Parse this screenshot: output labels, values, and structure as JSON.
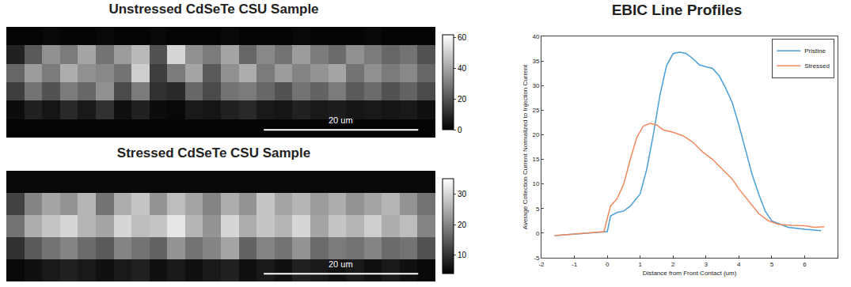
{
  "chart_data": [
    {
      "type": "heatmap",
      "title": "Unstressed CdSeTe CSU Sample",
      "tick_labels": false,
      "cells": [
        [
          1,
          1,
          2,
          1,
          1,
          2,
          1,
          1,
          2,
          1,
          1,
          1,
          2,
          1,
          1,
          1,
          2,
          1,
          1,
          1,
          2,
          1,
          1,
          1
        ],
        [
          8,
          22,
          35,
          30,
          40,
          28,
          38,
          45,
          20,
          52,
          35,
          30,
          40,
          25,
          33,
          28,
          38,
          30,
          26,
          35,
          30,
          25,
          28,
          20
        ],
        [
          25,
          38,
          30,
          42,
          35,
          33,
          28,
          50,
          15,
          30,
          40,
          22,
          35,
          42,
          30,
          38,
          32,
          36,
          40,
          28,
          35,
          30,
          33,
          25
        ],
        [
          15,
          28,
          20,
          30,
          25,
          35,
          18,
          30,
          12,
          10,
          25,
          18,
          28,
          30,
          25,
          20,
          28,
          24,
          30,
          22,
          26,
          20,
          24,
          18
        ],
        [
          3,
          8,
          5,
          10,
          6,
          12,
          4,
          8,
          3,
          2,
          6,
          5,
          8,
          10,
          6,
          5,
          8,
          6,
          7,
          5,
          6,
          5,
          6,
          4
        ],
        [
          1,
          1,
          1,
          1,
          1,
          1,
          1,
          1,
          1,
          1,
          1,
          1,
          1,
          1,
          1,
          1,
          1,
          1,
          1,
          1,
          1,
          1,
          1,
          1
        ]
      ],
      "colorbar_range": [
        0,
        62
      ],
      "colorbar_ticks": [
        0,
        20,
        40,
        60
      ],
      "annotations": [
        {
          "text": "20 um"
        }
      ]
    },
    {
      "type": "heatmap",
      "title": "Stressed CdSeTe CSU Sample",
      "tick_labels": false,
      "cells": [
        [
          5,
          5,
          5,
          5,
          5,
          5,
          5,
          5,
          5,
          5,
          5,
          5,
          5,
          5,
          5,
          5,
          5,
          5,
          5,
          5,
          5,
          5,
          5,
          5
        ],
        [
          12,
          20,
          24,
          22,
          26,
          18,
          25,
          28,
          22,
          27,
          24,
          20,
          25,
          22,
          28,
          24,
          26,
          23,
          25,
          22,
          24,
          26,
          22,
          18
        ],
        [
          18,
          25,
          28,
          30,
          26,
          24,
          30,
          27,
          28,
          32,
          26,
          22,
          30,
          25,
          28,
          26,
          30,
          24,
          28,
          26,
          29,
          25,
          27,
          20
        ],
        [
          10,
          15,
          18,
          20,
          17,
          15,
          20,
          18,
          16,
          22,
          18,
          20,
          24,
          16,
          20,
          18,
          22,
          17,
          19,
          18,
          20,
          17,
          18,
          14
        ],
        [
          5,
          6,
          7,
          8,
          7,
          6,
          7,
          8,
          6,
          7,
          6,
          7,
          8,
          6,
          7,
          6,
          8,
          7,
          6,
          7,
          6,
          7,
          6,
          5
        ]
      ],
      "colorbar_range": [
        4,
        35
      ],
      "colorbar_ticks": [
        10,
        20,
        30
      ],
      "annotations": [
        {
          "text": "20 um"
        }
      ]
    },
    {
      "type": "line",
      "title": "EBIC Line Profiles",
      "x_label": "Distance from Front Contact (um)",
      "y_label": "Average Collection Current Normalized to Injection Current",
      "xlim": [
        -2,
        7
      ],
      "xticks": [
        -2,
        -1,
        0,
        1,
        2,
        3,
        4,
        5,
        6
      ],
      "ylim": [
        -5,
        40
      ],
      "yticks": [
        -5,
        0,
        5,
        10,
        15,
        20,
        25,
        30,
        35,
        40
      ],
      "grid": false,
      "legend": "top right",
      "series": [
        {
          "name": "Pristine",
          "color": "#4a9fd8",
          "x": [
            -1.6,
            -1,
            -0.5,
            0,
            0.1,
            0.3,
            0.5,
            0.7,
            1,
            1.2,
            1.4,
            1.6,
            1.8,
            2,
            2.2,
            2.4,
            2.6,
            2.8,
            3,
            3.2,
            3.4,
            3.6,
            3.8,
            4,
            4.2,
            4.4,
            4.6,
            4.8,
            5,
            5.5,
            6,
            6.5
          ],
          "values": [
            -0.5,
            -0.2,
            0,
            0.3,
            3.5,
            4.2,
            4.5,
            5.5,
            8,
            13,
            20,
            28,
            34,
            36.5,
            36.8,
            36.5,
            35.5,
            34.2,
            33.8,
            33.5,
            32,
            29.5,
            26.5,
            22,
            17,
            12,
            8,
            4.5,
            2.5,
            1.2,
            0.8,
            0.5
          ]
        },
        {
          "name": "Stressed",
          "color": "#f08a5d",
          "x": [
            -1.6,
            -1,
            -0.5,
            -0.1,
            0,
            0.1,
            0.3,
            0.5,
            0.7,
            0.9,
            1.1,
            1.3,
            1.5,
            1.7,
            2,
            2.3,
            2.6,
            2.9,
            3.2,
            3.5,
            3.8,
            4,
            4.3,
            4.6,
            4.9,
            5.2,
            5.6,
            6,
            6.3,
            6.6
          ],
          "values": [
            -0.5,
            -0.2,
            0,
            0.3,
            3,
            5.5,
            7,
            10,
            15,
            19.5,
            21.8,
            22.3,
            22,
            21,
            20.5,
            19.8,
            18.5,
            16.5,
            15,
            13,
            11,
            9,
            6.5,
            4,
            2.5,
            1.8,
            1.6,
            1.5,
            1.2,
            1.3
          ]
        }
      ]
    }
  ]
}
